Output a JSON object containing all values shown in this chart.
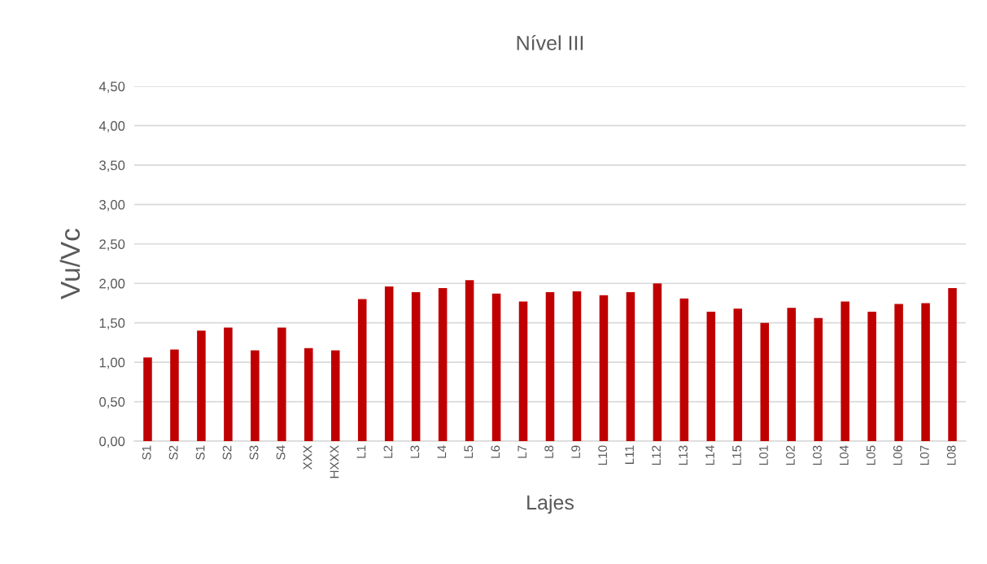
{
  "chart_data": {
    "type": "bar",
    "title": "Nível III",
    "xlabel": "Lajes",
    "ylabel": "Vu/Vc",
    "categories": [
      "S1",
      "S2",
      "S1",
      "S2",
      "S3",
      "S4",
      "XXX",
      "HXXX",
      "L1",
      "L2",
      "L3",
      "L4",
      "L5",
      "L6",
      "L7",
      "L8",
      "L9",
      "L10",
      "L11",
      "L12",
      "L13",
      "L14",
      "L15",
      "L01",
      "L02",
      "L03",
      "L04",
      "L05",
      "L06",
      "L07",
      "L08"
    ],
    "values": [
      1.06,
      1.16,
      1.4,
      1.44,
      1.15,
      1.44,
      1.18,
      1.15,
      1.8,
      1.96,
      1.89,
      1.94,
      2.04,
      1.87,
      1.77,
      1.89,
      1.9,
      1.85,
      1.89,
      2.0,
      1.81,
      1.64,
      1.68,
      1.5,
      1.69,
      1.56,
      1.77,
      1.64,
      1.74,
      1.75,
      1.94
    ],
    "color": "#c00000",
    "ylim": [
      0,
      4.5
    ],
    "yticks": [
      {
        "value": 0,
        "label": "0,00"
      },
      {
        "value": 0.5,
        "label": "0,50"
      },
      {
        "value": 1,
        "label": "1,00"
      },
      {
        "value": 1.5,
        "label": "1,50"
      },
      {
        "value": 2,
        "label": "2,00"
      },
      {
        "value": 2.5,
        "label": "2,50"
      },
      {
        "value": 3,
        "label": "3,00"
      },
      {
        "value": 3.5,
        "label": "3,50"
      },
      {
        "value": 4,
        "label": "4,00"
      },
      {
        "value": 4.5,
        "label": "4,50"
      }
    ],
    "grid": "y",
    "legend": false
  }
}
